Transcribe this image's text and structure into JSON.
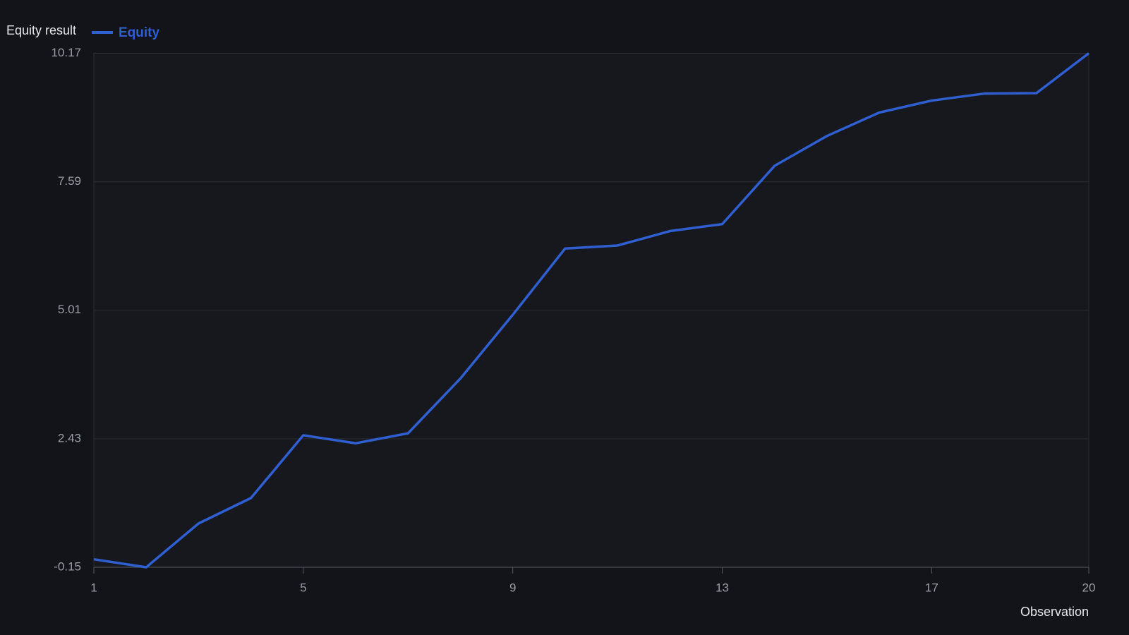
{
  "chart_data": {
    "type": "line",
    "title": "Equity result",
    "x_label": "Observation",
    "x": [
      1,
      2,
      3,
      4,
      5,
      6,
      7,
      8,
      9,
      10,
      11,
      12,
      13,
      14,
      15,
      16,
      17,
      18,
      19,
      20
    ],
    "series": [
      {
        "name": "Equity",
        "color": "#2f5fd0",
        "values": [
          0.01,
          -0.15,
          0.73,
          1.24,
          2.5,
          2.34,
          2.54,
          3.64,
          4.92,
          6.25,
          6.31,
          6.6,
          6.74,
          7.91,
          8.51,
          8.98,
          9.22,
          9.36,
          9.37,
          10.17
        ]
      }
    ],
    "xlim": [
      1,
      20
    ],
    "xticks": [
      1,
      5,
      9,
      13,
      17,
      20
    ],
    "ylim": [
      -0.15,
      10.17
    ],
    "yticks": [
      -0.15,
      2.43,
      5.01,
      7.59,
      10.17
    ],
    "grid": true
  }
}
